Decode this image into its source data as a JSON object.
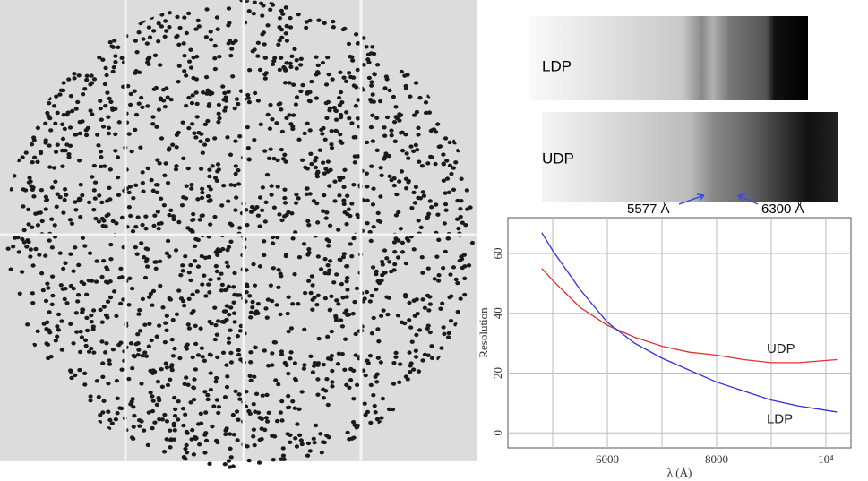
{
  "chart_data": {
    "type": "line",
    "xlabel": "λ (Å)",
    "ylabel": "Resolution",
    "x": [
      4800,
      5000,
      5500,
      6000,
      6500,
      7000,
      7500,
      8000,
      8500,
      9000,
      9500,
      10200
    ],
    "series": [
      {
        "name": "UDP",
        "color": "#e03030",
        "values": [
          55,
          51,
          42,
          36,
          32,
          29,
          27,
          26,
          24.5,
          23.5,
          23.5,
          24.5
        ]
      },
      {
        "name": "LDP",
        "color": "#3030e0",
        "values": [
          67,
          61,
          48,
          37,
          30,
          25,
          21,
          17,
          14,
          11,
          9,
          7
        ]
      }
    ],
    "xlim": [
      4180,
      10460
    ],
    "ylim": [
      -5,
      72
    ],
    "xticks": [
      6000,
      8000,
      {
        "value": 10000,
        "label": "10⁴"
      }
    ],
    "xgrid": [
      5000,
      7000,
      9000
    ],
    "yticks": [
      0,
      20,
      40,
      60
    ],
    "grid": true
  },
  "spectra": {
    "labels": [
      "LDP",
      "UDP"
    ],
    "annotations": [
      "5577 Å",
      "6300 Å"
    ]
  }
}
